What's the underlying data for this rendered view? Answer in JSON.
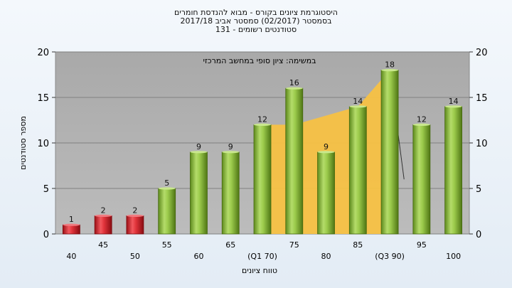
{
  "chart_data": {
    "type": "bar",
    "title_lines": [
      "היסטוגרמת ציונים בקורס - מבוא להנדסת חומרים",
      "בסמסטר  (02/2017)  סמסטר אביב 2017/18",
      "סטודנטים רשומים - 131"
    ],
    "annotation": "במשימה: ציון סופי במחשב המרכזי",
    "xlabel": "טווח ציונים",
    "ylabel": "מספר סטודנטים",
    "ylim": [
      0,
      20
    ],
    "yticks": [
      0,
      5,
      10,
      15,
      20
    ],
    "categories": [
      "40",
      "45",
      "50",
      "55",
      "60",
      "65",
      "(Q1 70)",
      "75",
      "80",
      "85",
      "(Q3 90)",
      "95",
      "100"
    ],
    "values": [
      1,
      2,
      2,
      5,
      9,
      9,
      12,
      16,
      9,
      14,
      18,
      12,
      14
    ],
    "bar_colors": [
      "#d8252f",
      "#d8252f",
      "#d8252f",
      "#8cbf3a",
      "#8cbf3a",
      "#8cbf3a",
      "#8cbf3a",
      "#8cbf3a",
      "#8cbf3a",
      "#8cbf3a",
      "#8cbf3a",
      "#8cbf3a",
      "#8cbf3a"
    ],
    "grid": true,
    "background_area": {
      "color": "#f7c143",
      "points": [
        {
          "x": "(Q1 70)",
          "y": 12
        },
        {
          "x": "75",
          "y": 12
        },
        {
          "x": "85",
          "y": 14
        },
        {
          "x": "(Q3 90)",
          "y": 18
        }
      ]
    },
    "colors": {
      "plot_bg": "#b3b3b3",
      "grid": "#808080"
    }
  }
}
